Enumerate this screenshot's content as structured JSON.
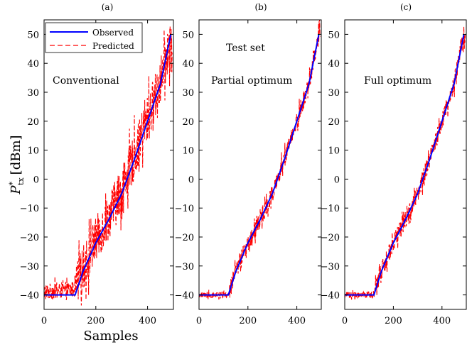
{
  "figure": {
    "xlabel": "Samples",
    "ylabel_main": "P",
    "ylabel_sup": "*",
    "ylabel_sub": "tx",
    "ylabel_unit": "[dBm]"
  },
  "legend": {
    "observed": "Observed",
    "predicted": "Predicted"
  },
  "chart_data": [
    {
      "type": "line",
      "panel_label": "(a)",
      "annotation": "Conventional",
      "xlim": [
        0,
        500
      ],
      "ylim": [
        -45,
        55
      ],
      "x_ticks": [
        0,
        200,
        400
      ],
      "y_ticks": [
        -40,
        -30,
        -20,
        -10,
        0,
        10,
        20,
        30,
        40,
        50
      ],
      "colors": {
        "observed": "#0000ff",
        "predicted": "#ff0000"
      },
      "series": [
        {
          "name": "Observed",
          "x": [
            0,
            120,
            150,
            200,
            250,
            300,
            350,
            400,
            450,
            490
          ],
          "y": [
            -40,
            -40,
            -32,
            -22,
            -14,
            -5,
            7,
            20,
            33,
            50
          ]
        },
        {
          "name": "Predicted",
          "noise_amplitude_dB": 8,
          "x": [
            0,
            120,
            150,
            200,
            250,
            300,
            350,
            400,
            450,
            490
          ],
          "y": [
            -39,
            -38,
            -31,
            -21,
            -13,
            -4,
            8,
            21,
            34,
            48
          ]
        }
      ]
    },
    {
      "type": "line",
      "panel_label": "(b)",
      "annotation_top": "Test set",
      "annotation": "Partial optimum",
      "xlim": [
        0,
        500
      ],
      "ylim": [
        -45,
        55
      ],
      "x_ticks": [
        0,
        200,
        400
      ],
      "y_ticks": [
        -40,
        -30,
        -20,
        -10,
        0,
        10,
        20,
        30,
        40,
        50
      ],
      "colors": {
        "observed": "#0000ff",
        "predicted": "#ff0000"
      },
      "series": [
        {
          "name": "Observed",
          "x": [
            0,
            120,
            150,
            200,
            250,
            300,
            350,
            400,
            450,
            490
          ],
          "y": [
            -40,
            -40,
            -32,
            -22,
            -14,
            -5,
            7,
            20,
            33,
            50
          ]
        },
        {
          "name": "Predicted",
          "noise_amplitude_dB": 3,
          "x": [
            0,
            120,
            150,
            200,
            250,
            300,
            350,
            400,
            450,
            490
          ],
          "y": [
            -40,
            -40,
            -32,
            -22,
            -14,
            -5,
            7,
            20,
            33,
            50
          ]
        }
      ]
    },
    {
      "type": "line",
      "panel_label": "(c)",
      "annotation": "Full optimum",
      "xlim": [
        0,
        500
      ],
      "ylim": [
        -45,
        55
      ],
      "x_ticks": [
        0,
        200,
        400
      ],
      "y_ticks": [
        -40,
        -30,
        -20,
        -10,
        0,
        10,
        20,
        30,
        40,
        50
      ],
      "colors": {
        "observed": "#0000ff",
        "predicted": "#ff0000"
      },
      "series": [
        {
          "name": "Observed",
          "x": [
            0,
            120,
            150,
            200,
            250,
            300,
            350,
            400,
            450,
            490
          ],
          "y": [
            -40,
            -40,
            -32,
            -22,
            -14,
            -5,
            7,
            20,
            33,
            50
          ]
        },
        {
          "name": "Predicted",
          "noise_amplitude_dB": 3,
          "x": [
            0,
            120,
            150,
            200,
            250,
            300,
            350,
            400,
            450,
            490
          ],
          "y": [
            -40,
            -40,
            -32,
            -22,
            -14,
            -5,
            7,
            20,
            33,
            50
          ]
        }
      ]
    }
  ]
}
